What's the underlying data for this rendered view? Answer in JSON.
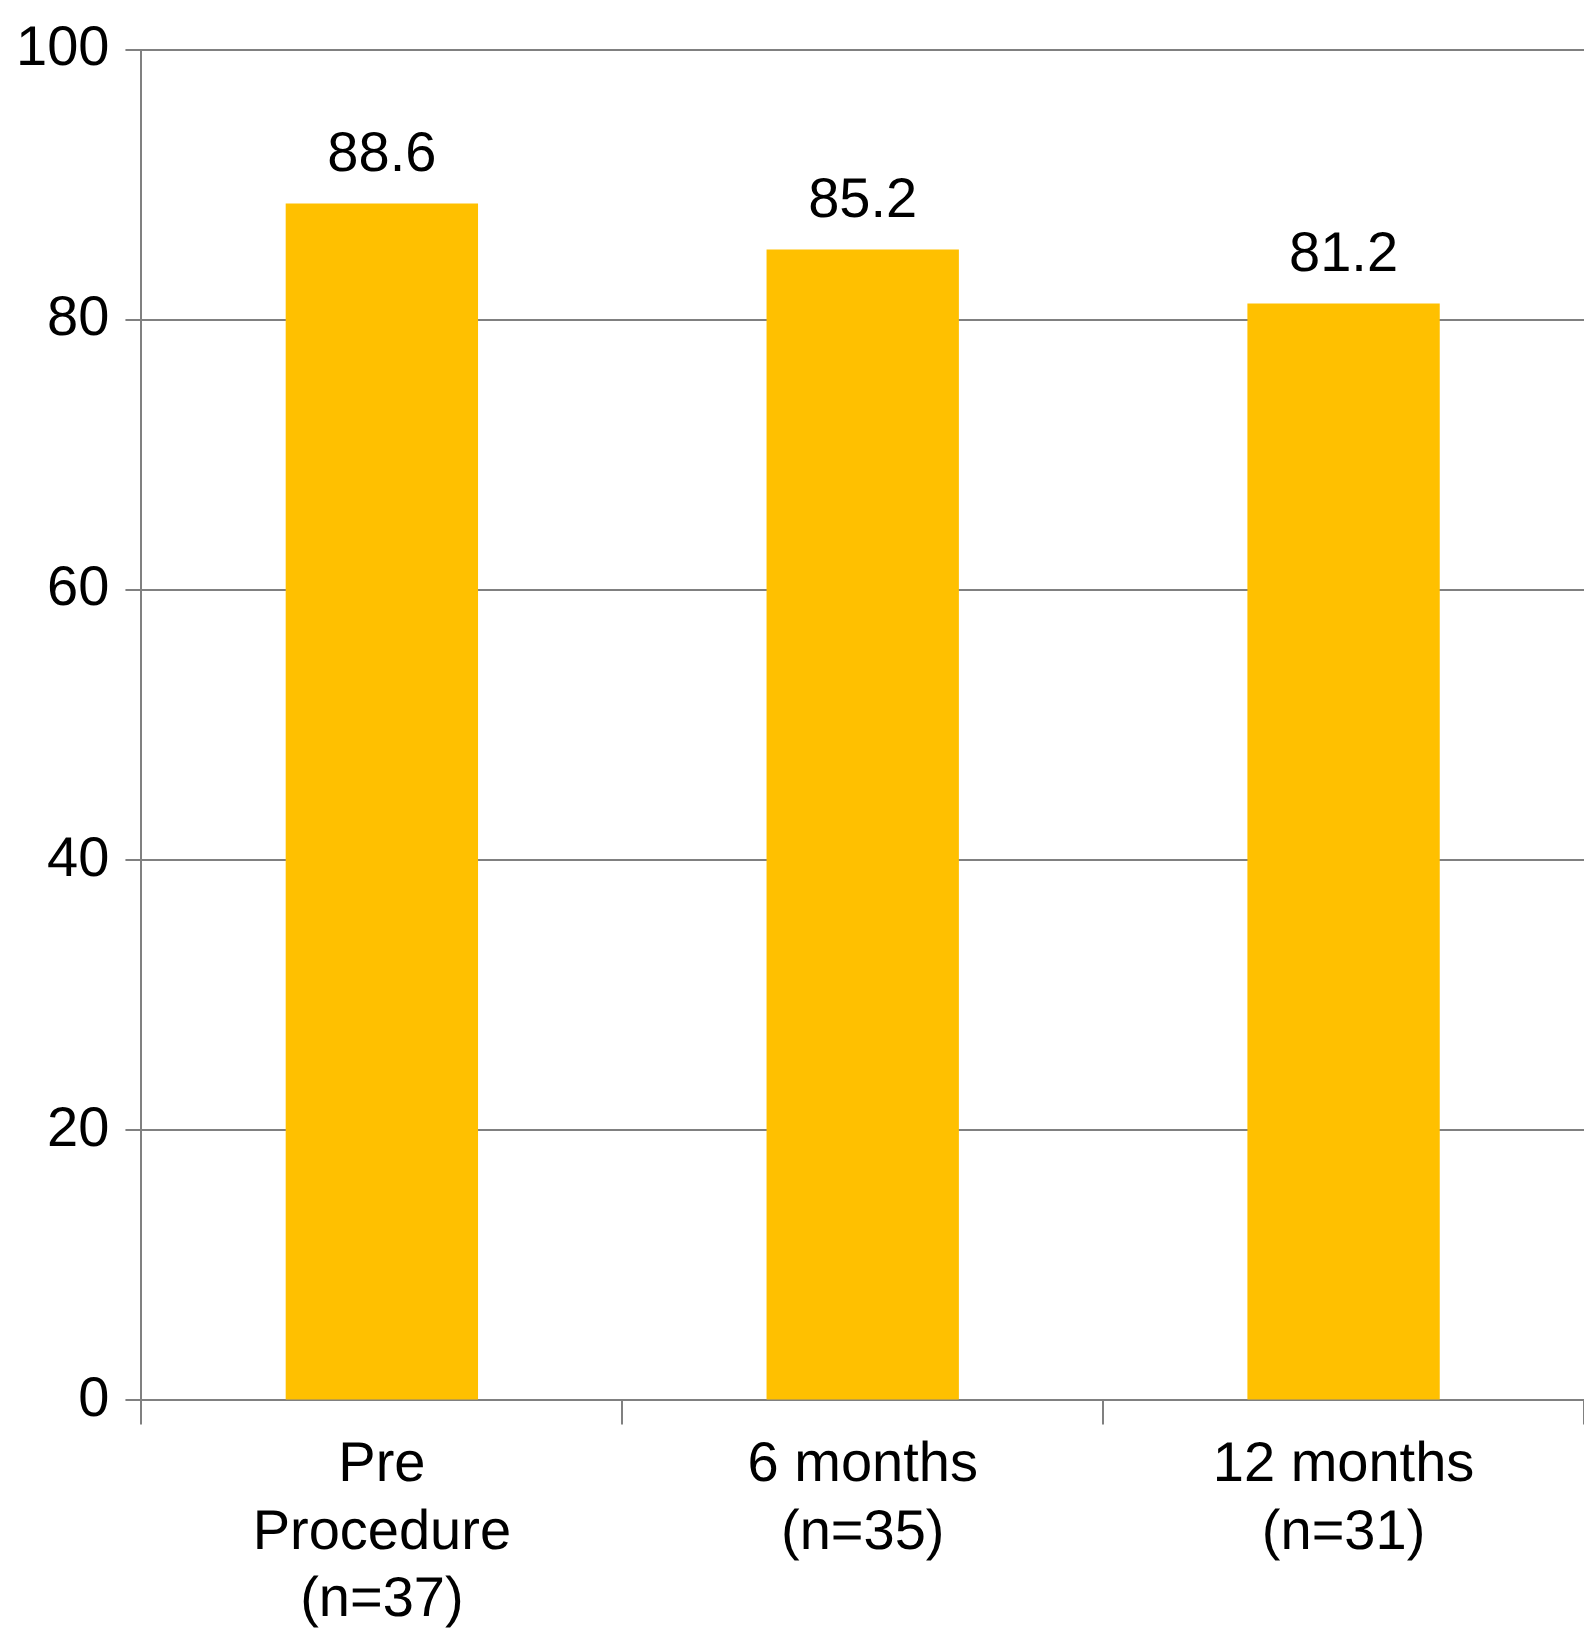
{
  "chart_data": {
    "type": "bar",
    "categories": [
      "Pre\nProcedure\n(n=37)",
      "6 months\n(n=35)",
      "12 months\n(n=31)"
    ],
    "values": [
      88.6,
      85.2,
      81.2
    ],
    "color": "#ffc000",
    "ylim": [
      0,
      100
    ],
    "yticks": [
      0,
      20,
      40,
      60,
      80,
      100
    ],
    "grid": "y",
    "data_labels": true,
    "legend": false
  }
}
